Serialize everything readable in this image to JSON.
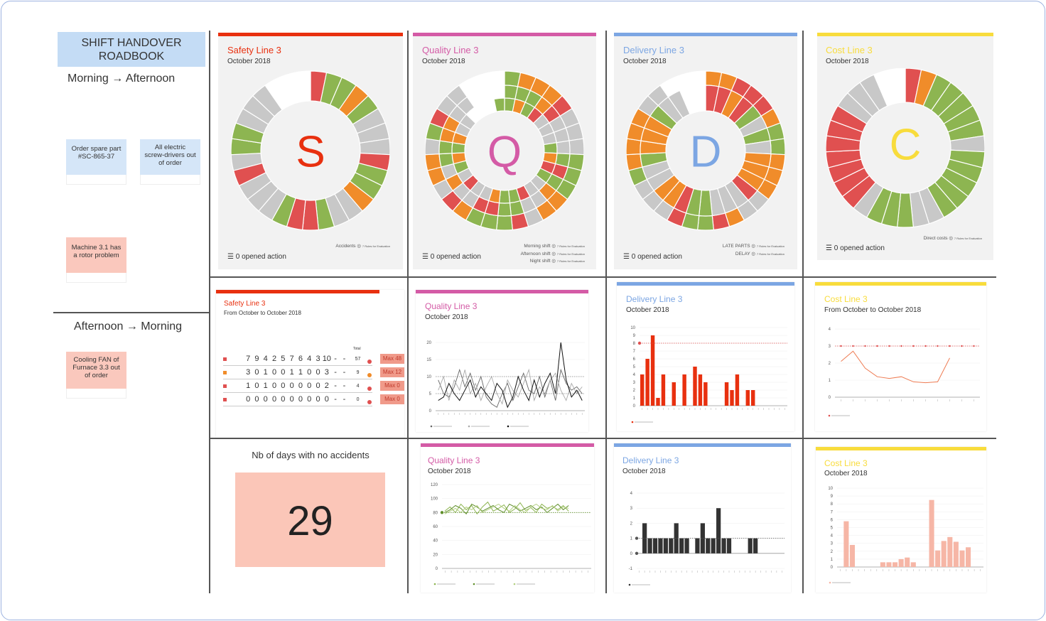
{
  "sidebar": {
    "title": "SHIFT HANDOVER ROADBOOK",
    "shift1": "Morning → Afternoon",
    "shift2": "Afternoon → Morning",
    "notes": [
      {
        "text": "Order spare part #SC-865-37"
      },
      {
        "text": "All electric screw-drivers out of order"
      },
      {
        "text": "Machine 3.1 has a rotor problem"
      },
      {
        "text": "Cooling FAN of Furnace 3.3 out of order"
      }
    ]
  },
  "colors": {
    "safety": "#e8300f",
    "quality": "#d45ba6",
    "delivery": "#7ca6e3",
    "cost": "#f8dc3c",
    "green": "#8db551",
    "orange": "#f08c2a",
    "red": "#e05050",
    "grey": "#c8c8c8"
  },
  "row1": {
    "safety": {
      "title": "Safety Line 3",
      "sub": "October 2018",
      "letter": "S",
      "opened": "0 opened action",
      "legend": [
        "Accidents"
      ]
    },
    "quality": {
      "title": "Quality Line 3",
      "sub": "October 2018",
      "letter": "Q",
      "opened": "0 opened action",
      "legend": [
        "Morning shift",
        "Afternoon shift",
        "Night shift"
      ]
    },
    "delivery": {
      "title": "Delivery Line 3",
      "sub": "October 2018",
      "letter": "D",
      "opened": "0 opened action",
      "legend": [
        "LATE PARTS",
        "DELAY"
      ]
    },
    "cost": {
      "title": "Cost Line 3",
      "sub": "October 2018",
      "letter": "C",
      "opened": "0 opened action",
      "legend": [
        "Direct costs"
      ]
    }
  },
  "row2": {
    "safety": {
      "title": "Safety Line 3",
      "sub": "From October to October 2018",
      "table_rows": [
        {
          "values": [
            "7",
            "9",
            "4",
            "2",
            "5",
            "7",
            "6",
            "4",
            "3",
            "10",
            "-",
            "-"
          ],
          "total": "57",
          "max": "Max 48"
        },
        {
          "values": [
            "3",
            "0",
            "1",
            "0",
            "0",
            "1",
            "1",
            "0",
            "0",
            "3",
            "-",
            "-"
          ],
          "total": "9",
          "max": "Max 12"
        },
        {
          "values": [
            "1",
            "0",
            "1",
            "0",
            "0",
            "0",
            "0",
            "0",
            "0",
            "2",
            "-",
            "-"
          ],
          "total": "4",
          "max": "Max 0"
        },
        {
          "values": [
            "0",
            "0",
            "0",
            "0",
            "0",
            "0",
            "0",
            "0",
            "0",
            "0",
            "-",
            "-"
          ],
          "total": "0",
          "max": "Max 0"
        }
      ],
      "total_label": "Total"
    },
    "quality": {
      "title": "Quality Line 3",
      "sub": "October 2018"
    },
    "delivery": {
      "title": "Delivery Line 3",
      "sub": "October 2018"
    },
    "cost": {
      "title": "Cost Line 3",
      "sub": "From October to October 2018"
    }
  },
  "row3": {
    "kpi": {
      "title": "Nb of days with no accidents",
      "value": "29"
    },
    "quality": {
      "title": "Quality Line 3",
      "sub": "October 2018"
    },
    "delivery": {
      "title": "Delivery Line 3",
      "sub": "October 2018"
    },
    "cost": {
      "title": "Cost Line 3",
      "sub": "October 2018"
    }
  },
  "chart_data": [
    {
      "type": "line",
      "title": "Quality Line 3",
      "ylim": [
        0,
        20
      ],
      "yticks": [
        "0",
        "5",
        "10",
        "15",
        "20"
      ],
      "series": [
        {
          "name": "Morning",
          "values": [
            9,
            5,
            4,
            7,
            12,
            7,
            11,
            6,
            10,
            4,
            2,
            1,
            5,
            8,
            3,
            7,
            11,
            6,
            5,
            10,
            4,
            9,
            3,
            12,
            8,
            6,
            7,
            5
          ]
        },
        {
          "name": "Afternoon",
          "values": [
            6,
            10,
            3,
            9,
            6,
            12,
            5,
            8,
            3,
            7,
            10,
            5,
            2,
            9,
            6,
            4,
            8,
            12,
            3,
            7,
            5,
            9,
            11,
            6,
            3,
            8,
            5,
            7
          ]
        },
        {
          "name": "Night",
          "values": [
            3,
            4,
            8,
            5,
            3,
            6,
            9,
            4,
            7,
            5,
            3,
            8,
            6,
            1,
            4,
            10,
            6,
            3,
            9,
            4,
            8,
            11,
            5,
            20,
            9,
            4,
            6,
            3
          ]
        }
      ]
    },
    {
      "type": "bar",
      "title": "Delivery Line 3",
      "ylim": [
        0,
        10
      ],
      "yticks": [
        "0",
        "1",
        "2",
        "3",
        "4",
        "5",
        "6",
        "7",
        "8",
        "9",
        "10"
      ],
      "target": 8,
      "values": [
        4,
        6,
        9,
        1,
        4,
        0,
        3,
        0,
        4,
        0,
        5,
        4,
        3,
        0,
        0,
        0,
        3,
        2,
        4,
        0,
        2,
        2,
        0,
        0,
        0,
        0,
        0,
        0
      ]
    },
    {
      "type": "line",
      "title": "Cost Line 3",
      "ylim": [
        0,
        4
      ],
      "yticks": [
        "0",
        "1",
        "2",
        "3",
        "4"
      ],
      "target": 3,
      "values": [
        2.1,
        2.7,
        1.7,
        1.2,
        1.1,
        1.2,
        0.9,
        0.85,
        0.9,
        2.3
      ]
    },
    {
      "type": "line",
      "title": "Quality Line 3",
      "ylim": [
        0,
        120
      ],
      "yticks": [
        "0",
        "20",
        "40",
        "60",
        "80",
        "100",
        "120"
      ],
      "target": 80,
      "series": [
        {
          "name": "Morning",
          "values": [
            82,
            88,
            80,
            92,
            84,
            90,
            78,
            88,
            95,
            82,
            86,
            91,
            80,
            85,
            94,
            83,
            87,
            80,
            92,
            86,
            89,
            84,
            90,
            82
          ]
        },
        {
          "name": "Afternoon",
          "values": [
            80,
            84,
            90,
            86,
            78,
            92,
            88,
            82,
            86,
            90,
            84,
            80,
            92,
            88,
            82,
            86,
            90,
            84,
            88,
            80,
            86,
            92,
            84,
            90
          ]
        },
        {
          "name": "Night",
          "values": [
            78,
            82,
            86,
            80,
            88,
            84,
            90,
            80,
            84,
            88,
            92,
            86,
            82,
            90,
            84,
            80,
            88,
            92,
            86,
            84,
            90,
            82,
            88,
            86
          ]
        }
      ]
    },
    {
      "type": "bar",
      "title": "Delivery Line 3",
      "ylim": [
        -1,
        4
      ],
      "yticks": [
        "-1",
        "0",
        "1",
        "2",
        "3",
        "4"
      ],
      "target": 1,
      "values": [
        0,
        2,
        1,
        1,
        1,
        1,
        1,
        2,
        1,
        1,
        0,
        1,
        2,
        1,
        1,
        3,
        1,
        1,
        0,
        0,
        0,
        1,
        1,
        0,
        0,
        0,
        0,
        0
      ]
    },
    {
      "type": "bar",
      "title": "Cost Line 3",
      "ylim": [
        0,
        10
      ],
      "yticks": [
        "0",
        "1",
        "2",
        "3",
        "4",
        "5",
        "6",
        "7",
        "8",
        "9",
        "10"
      ],
      "values": [
        0,
        5.8,
        2.8,
        0,
        0,
        0,
        0,
        0.6,
        0.6,
        0.6,
        1,
        1.2,
        0.6,
        0,
        0,
        8.5,
        2.1,
        3.3,
        3.8,
        3.2,
        2.1,
        2.5,
        0,
        0
      ]
    }
  ]
}
